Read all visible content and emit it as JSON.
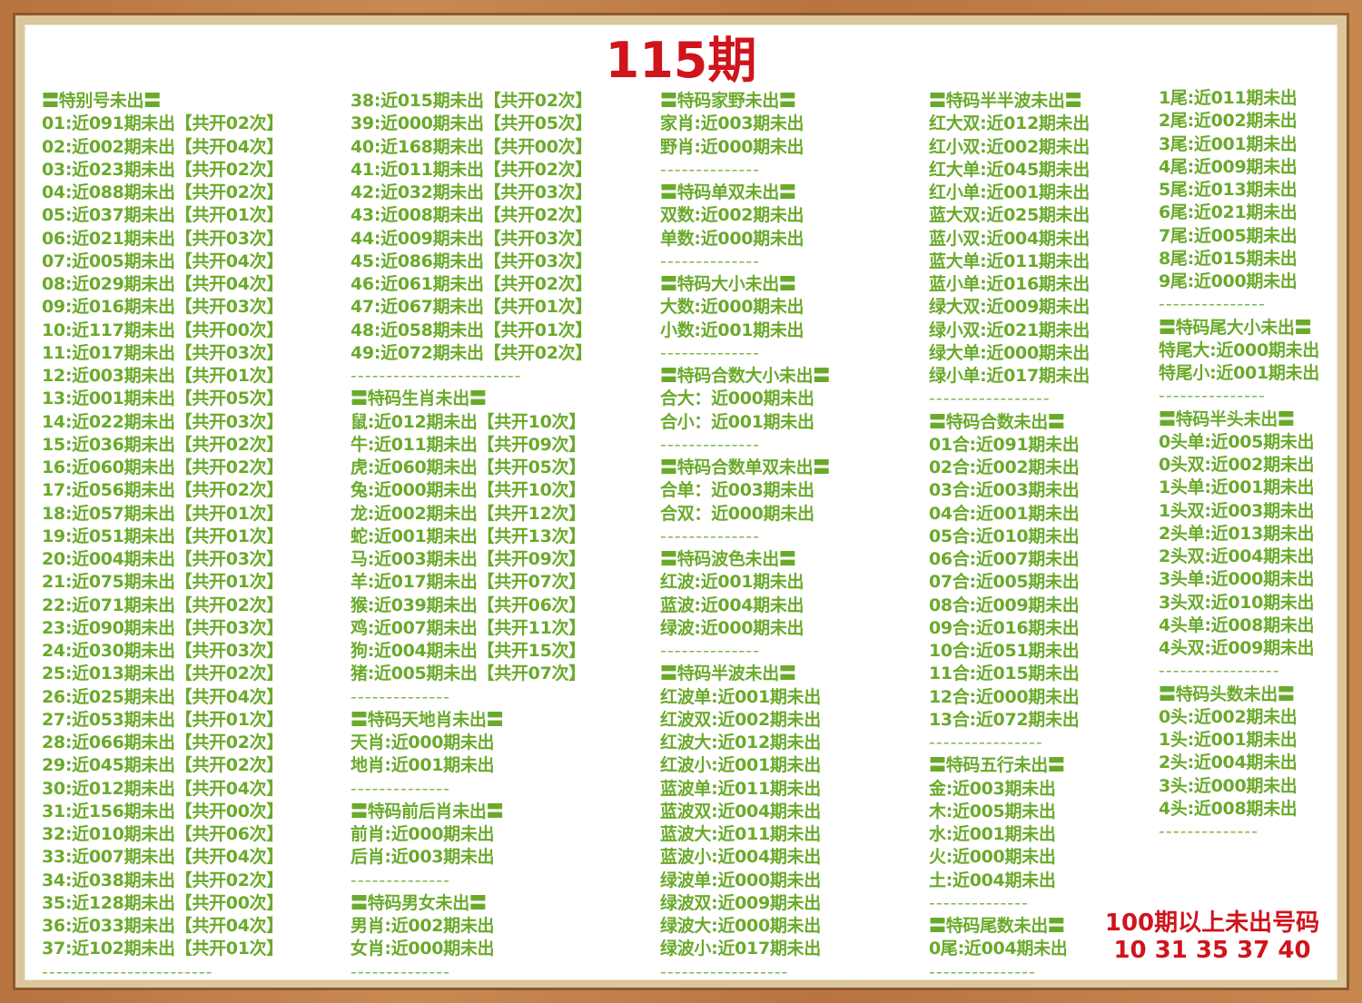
{
  "title": "115期",
  "colors": {
    "text_green": "#6aaa2a",
    "title_red": "#d0141c"
  },
  "columns": [
    [
      {
        "k": "h",
        "t": "〓特别号未出〓"
      },
      {
        "k": "t",
        "t": "01:近091期未出【共开02次】"
      },
      {
        "k": "t",
        "t": "02:近002期未出【共开04次】"
      },
      {
        "k": "t",
        "t": "03:近023期未出【共开02次】"
      },
      {
        "k": "t",
        "t": "04:近088期未出【共开02次】"
      },
      {
        "k": "t",
        "t": "05:近037期未出【共开01次】"
      },
      {
        "k": "t",
        "t": "06:近021期未出【共开03次】"
      },
      {
        "k": "t",
        "t": "07:近005期未出【共开04次】"
      },
      {
        "k": "t",
        "t": "08:近029期未出【共开04次】"
      },
      {
        "k": "t",
        "t": "09:近016期未出【共开03次】"
      },
      {
        "k": "t",
        "t": "10:近117期未出【共开00次】"
      },
      {
        "k": "t",
        "t": "11:近017期未出【共开03次】"
      },
      {
        "k": "t",
        "t": "12:近003期未出【共开01次】"
      },
      {
        "k": "t",
        "t": "13:近001期未出【共开05次】"
      },
      {
        "k": "t",
        "t": "14:近022期未出【共开03次】"
      },
      {
        "k": "t",
        "t": "15:近036期未出【共开02次】"
      },
      {
        "k": "t",
        "t": "16:近060期未出【共开02次】"
      },
      {
        "k": "t",
        "t": "17:近056期未出【共开02次】"
      },
      {
        "k": "t",
        "t": "18:近057期未出【共开01次】"
      },
      {
        "k": "t",
        "t": "19:近051期未出【共开01次】"
      },
      {
        "k": "t",
        "t": "20:近004期未出【共开03次】"
      },
      {
        "k": "t",
        "t": "21:近075期未出【共开01次】"
      },
      {
        "k": "t",
        "t": "22:近071期未出【共开02次】"
      },
      {
        "k": "t",
        "t": "23:近090期未出【共开03次】"
      },
      {
        "k": "t",
        "t": "24:近030期未出【共开03次】"
      },
      {
        "k": "t",
        "t": "25:近013期未出【共开02次】"
      },
      {
        "k": "t",
        "t": "26:近025期未出【共开04次】"
      },
      {
        "k": "t",
        "t": "27:近053期未出【共开01次】"
      },
      {
        "k": "t",
        "t": "28:近066期未出【共开02次】"
      },
      {
        "k": "t",
        "t": "29:近045期未出【共开02次】"
      },
      {
        "k": "t",
        "t": "30:近012期未出【共开04次】"
      },
      {
        "k": "t",
        "t": "31:近156期未出【共开00次】"
      },
      {
        "k": "t",
        "t": "32:近010期未出【共开06次】"
      },
      {
        "k": "t",
        "t": "33:近007期未出【共开04次】"
      },
      {
        "k": "t",
        "t": "34:近038期未出【共开02次】"
      },
      {
        "k": "t",
        "t": "35:近128期未出【共开00次】"
      },
      {
        "k": "t",
        "t": "36:近033期未出【共开04次】"
      },
      {
        "k": "t",
        "t": "37:近102期未出【共开01次】"
      },
      {
        "k": "d",
        "t": "------------------------"
      }
    ],
    [
      {
        "k": "t",
        "t": "38:近015期未出【共开02次】"
      },
      {
        "k": "t",
        "t": "39:近000期未出【共开05次】"
      },
      {
        "k": "t",
        "t": "40:近168期未出【共开00次】"
      },
      {
        "k": "t",
        "t": "41:近011期未出【共开02次】"
      },
      {
        "k": "t",
        "t": "42:近032期未出【共开03次】"
      },
      {
        "k": "t",
        "t": "43:近008期未出【共开02次】"
      },
      {
        "k": "t",
        "t": "44:近009期未出【共开03次】"
      },
      {
        "k": "t",
        "t": "45:近086期未出【共开03次】"
      },
      {
        "k": "t",
        "t": "46:近061期未出【共开02次】"
      },
      {
        "k": "t",
        "t": "47:近067期未出【共开01次】"
      },
      {
        "k": "t",
        "t": "48:近058期未出【共开01次】"
      },
      {
        "k": "t",
        "t": "49:近072期未出【共开02次】"
      },
      {
        "k": "d",
        "t": "------------------------"
      },
      {
        "k": "h",
        "t": "〓特码生肖未出〓"
      },
      {
        "k": "t",
        "t": "鼠:近012期未出【共开10次】"
      },
      {
        "k": "t",
        "t": "牛:近011期未出【共开09次】"
      },
      {
        "k": "t",
        "t": "虎:近060期未出【共开05次】"
      },
      {
        "k": "t",
        "t": "兔:近000期未出【共开10次】"
      },
      {
        "k": "t",
        "t": "龙:近002期未出【共开12次】"
      },
      {
        "k": "t",
        "t": "蛇:近001期未出【共开13次】"
      },
      {
        "k": "t",
        "t": "马:近003期未出【共开09次】"
      },
      {
        "k": "t",
        "t": "羊:近017期未出【共开07次】"
      },
      {
        "k": "t",
        "t": "猴:近039期未出【共开06次】"
      },
      {
        "k": "t",
        "t": "鸡:近007期未出【共开11次】"
      },
      {
        "k": "t",
        "t": "狗:近004期未出【共开15次】"
      },
      {
        "k": "t",
        "t": "猪:近005期未出【共开07次】"
      },
      {
        "k": "d",
        "t": "--------------"
      },
      {
        "k": "h",
        "t": "〓特码天地肖未出〓"
      },
      {
        "k": "t",
        "t": "天肖:近000期未出"
      },
      {
        "k": "t",
        "t": "地肖:近001期未出"
      },
      {
        "k": "d",
        "t": "--------------"
      },
      {
        "k": "h",
        "t": "〓特码前后肖未出〓"
      },
      {
        "k": "t",
        "t": "前肖:近000期未出"
      },
      {
        "k": "t",
        "t": "后肖:近003期未出"
      },
      {
        "k": "d",
        "t": "--------------"
      },
      {
        "k": "h",
        "t": "〓特码男女未出〓"
      },
      {
        "k": "t",
        "t": "男肖:近002期未出"
      },
      {
        "k": "t",
        "t": "女肖:近000期未出"
      },
      {
        "k": "d",
        "t": "--------------"
      }
    ],
    [
      {
        "k": "h",
        "t": "〓特码家野未出〓"
      },
      {
        "k": "t",
        "t": "家肖:近003期未出"
      },
      {
        "k": "t",
        "t": "野肖:近000期未出"
      },
      {
        "k": "d",
        "t": "--------------"
      },
      {
        "k": "h",
        "t": "〓特码单双未出〓"
      },
      {
        "k": "t",
        "t": "双数:近002期未出"
      },
      {
        "k": "t",
        "t": "单数:近000期未出"
      },
      {
        "k": "d",
        "t": "--------------"
      },
      {
        "k": "h",
        "t": "〓特码大小未出〓"
      },
      {
        "k": "t",
        "t": "大数:近000期未出"
      },
      {
        "k": "t",
        "t": "小数:近001期未出"
      },
      {
        "k": "d",
        "t": "--------------"
      },
      {
        "k": "h",
        "t": "〓特码合数大小未出〓"
      },
      {
        "k": "t",
        "t": "合大：近000期未出"
      },
      {
        "k": "t",
        "t": "合小：近001期未出"
      },
      {
        "k": "d",
        "t": "--------------"
      },
      {
        "k": "h",
        "t": "〓特码合数单双未出〓"
      },
      {
        "k": "t",
        "t": "合单：近003期未出"
      },
      {
        "k": "t",
        "t": "合双：近000期未出"
      },
      {
        "k": "d",
        "t": "--------------"
      },
      {
        "k": "h",
        "t": "〓特码波色未出〓"
      },
      {
        "k": "t",
        "t": "红波:近001期未出"
      },
      {
        "k": "t",
        "t": "蓝波:近004期未出"
      },
      {
        "k": "t",
        "t": "绿波:近000期未出"
      },
      {
        "k": "d",
        "t": "--------------"
      },
      {
        "k": "h",
        "t": "〓特码半波未出〓"
      },
      {
        "k": "t",
        "t": "红波单:近001期未出"
      },
      {
        "k": "t",
        "t": "红波双:近002期未出"
      },
      {
        "k": "t",
        "t": "红波大:近012期未出"
      },
      {
        "k": "t",
        "t": "红波小:近001期未出"
      },
      {
        "k": "t",
        "t": "蓝波单:近011期未出"
      },
      {
        "k": "t",
        "t": "蓝波双:近004期未出"
      },
      {
        "k": "t",
        "t": "蓝波大:近011期未出"
      },
      {
        "k": "t",
        "t": "蓝波小:近004期未出"
      },
      {
        "k": "t",
        "t": "绿波单:近000期未出"
      },
      {
        "k": "t",
        "t": "绿波双:近009期未出"
      },
      {
        "k": "t",
        "t": "绿波大:近000期未出"
      },
      {
        "k": "t",
        "t": "绿波小:近017期未出"
      },
      {
        "k": "d",
        "t": "------------------"
      }
    ],
    [
      {
        "k": "h",
        "t": "〓特码半半波未出〓"
      },
      {
        "k": "t",
        "t": "红大双:近012期未出"
      },
      {
        "k": "t",
        "t": "红小双:近002期未出"
      },
      {
        "k": "t",
        "t": "红大单:近045期未出"
      },
      {
        "k": "t",
        "t": "红小单:近001期未出"
      },
      {
        "k": "t",
        "t": "蓝大双:近025期未出"
      },
      {
        "k": "t",
        "t": "蓝小双:近004期未出"
      },
      {
        "k": "t",
        "t": "蓝大单:近011期未出"
      },
      {
        "k": "t",
        "t": "蓝小单:近016期未出"
      },
      {
        "k": "t",
        "t": "绿大双:近009期未出"
      },
      {
        "k": "t",
        "t": "绿小双:近021期未出"
      },
      {
        "k": "t",
        "t": "绿大单:近000期未出"
      },
      {
        "k": "t",
        "t": "绿小单:近017期未出"
      },
      {
        "k": "d",
        "t": "-----------------"
      },
      {
        "k": "h",
        "t": "〓特码合数未出〓"
      },
      {
        "k": "t",
        "t": "01合:近091期未出"
      },
      {
        "k": "t",
        "t": "02合:近002期未出"
      },
      {
        "k": "t",
        "t": "03合:近003期未出"
      },
      {
        "k": "t",
        "t": "04合:近001期未出"
      },
      {
        "k": "t",
        "t": "05合:近010期未出"
      },
      {
        "k": "t",
        "t": "06合:近007期未出"
      },
      {
        "k": "t",
        "t": "07合:近005期未出"
      },
      {
        "k": "t",
        "t": "08合:近009期未出"
      },
      {
        "k": "t",
        "t": "09合:近016期未出"
      },
      {
        "k": "t",
        "t": "10合:近051期未出"
      },
      {
        "k": "t",
        "t": "11合:近015期未出"
      },
      {
        "k": "t",
        "t": "12合:近000期未出"
      },
      {
        "k": "t",
        "t": "13合:近072期未出"
      },
      {
        "k": "d",
        "t": "----------------"
      },
      {
        "k": "h",
        "t": "〓特码五行未出〓"
      },
      {
        "k": "t",
        "t": "金:近003期未出"
      },
      {
        "k": "t",
        "t": "木:近005期未出"
      },
      {
        "k": "t",
        "t": "水:近001期未出"
      },
      {
        "k": "t",
        "t": "火:近000期未出"
      },
      {
        "k": "t",
        "t": "土:近004期未出"
      },
      {
        "k": "d",
        "t": "--------------"
      },
      {
        "k": "h",
        "t": "〓特码尾数未出〓"
      },
      {
        "k": "t",
        "t": "0尾:近004期未出"
      },
      {
        "k": "d",
        "t": "---------------"
      }
    ],
    [
      {
        "k": "t",
        "t": "1尾:近011期未出"
      },
      {
        "k": "t",
        "t": "2尾:近002期未出"
      },
      {
        "k": "t",
        "t": "3尾:近001期未出"
      },
      {
        "k": "t",
        "t": "4尾:近009期未出"
      },
      {
        "k": "t",
        "t": "5尾:近013期未出"
      },
      {
        "k": "t",
        "t": "6尾:近021期未出"
      },
      {
        "k": "t",
        "t": "7尾:近005期未出"
      },
      {
        "k": "t",
        "t": "8尾:近015期未出"
      },
      {
        "k": "t",
        "t": "9尾:近000期未出"
      },
      {
        "k": "d",
        "t": "---------------"
      },
      {
        "k": "h",
        "t": "〓特码尾大小未出〓"
      },
      {
        "k": "t",
        "t": "特尾大:近000期未出"
      },
      {
        "k": "t",
        "t": "特尾小:近001期未出"
      },
      {
        "k": "d",
        "t": "---------------"
      },
      {
        "k": "h",
        "t": "〓特码半头未出〓"
      },
      {
        "k": "t",
        "t": "0头单:近005期未出"
      },
      {
        "k": "t",
        "t": "0头双:近002期未出"
      },
      {
        "k": "t",
        "t": "1头单:近001期未出"
      },
      {
        "k": "t",
        "t": "1头双:近003期未出"
      },
      {
        "k": "t",
        "t": "2头单:近013期未出"
      },
      {
        "k": "t",
        "t": "2头双:近004期未出"
      },
      {
        "k": "t",
        "t": "3头单:近000期未出"
      },
      {
        "k": "t",
        "t": "3头双:近010期未出"
      },
      {
        "k": "t",
        "t": "4头单:近008期未出"
      },
      {
        "k": "t",
        "t": "4头双:近009期未出"
      },
      {
        "k": "d",
        "t": "-----------------"
      },
      {
        "k": "h",
        "t": "〓特码头数未出〓"
      },
      {
        "k": "t",
        "t": "0头:近002期未出"
      },
      {
        "k": "t",
        "t": "1头:近001期未出"
      },
      {
        "k": "t",
        "t": "2头:近004期未出"
      },
      {
        "k": "t",
        "t": "3头:近000期未出"
      },
      {
        "k": "t",
        "t": "4头:近008期未出"
      },
      {
        "k": "d",
        "t": "--------------"
      }
    ]
  ],
  "over100": {
    "label": "100期以上未出号码",
    "numbers": "10 31 35 37 40"
  }
}
